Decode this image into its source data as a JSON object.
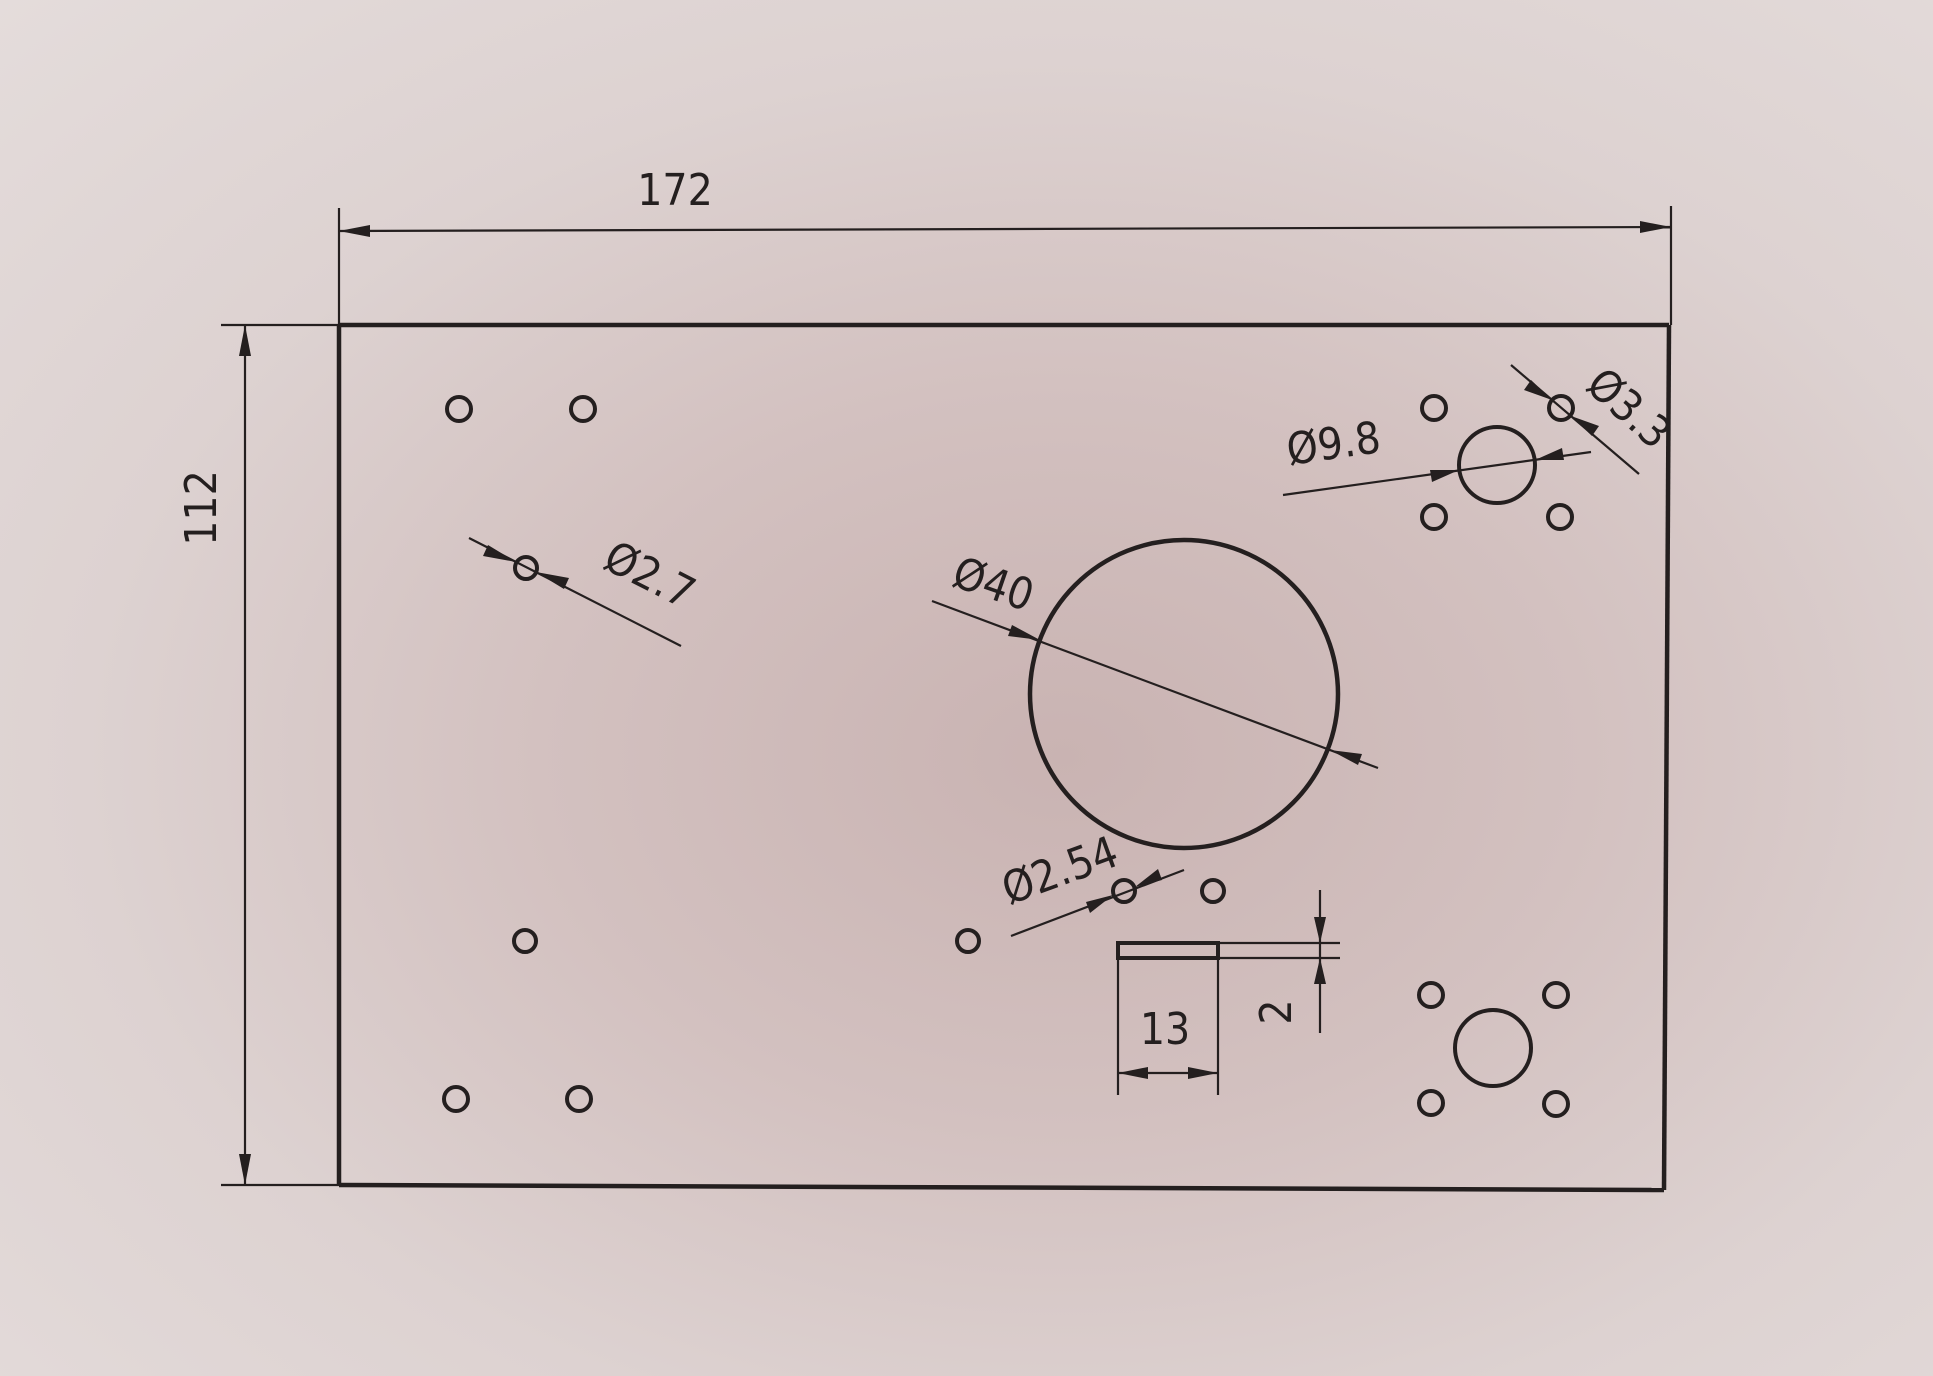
{
  "dimensions": {
    "width": "172",
    "height": "112",
    "hole_2_7": "Ø2.7",
    "hole_40": "Ø40",
    "hole_9_8": "Ø9.8",
    "hole_3_3": "Ø3.3",
    "hole_2_54": "Ø2.54",
    "slot_width": "13",
    "slot_height": "2"
  }
}
